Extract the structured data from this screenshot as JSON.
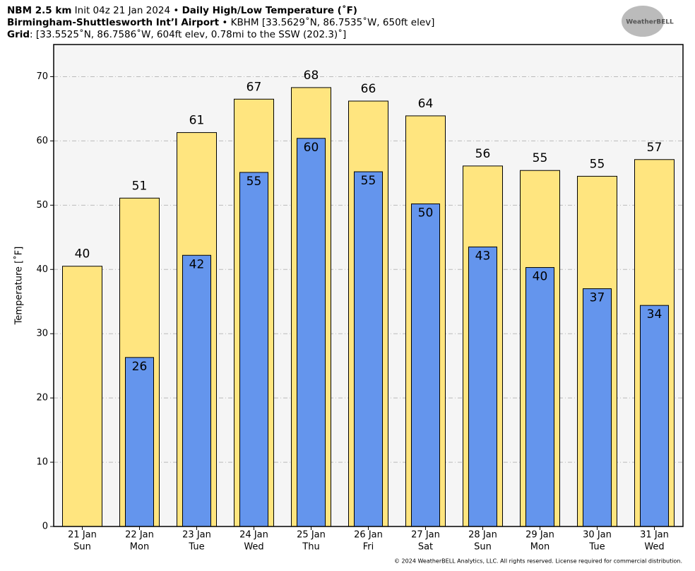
{
  "chart_data": {
    "type": "bar",
    "title_parts": [
      [
        "NBM 2.5 km",
        " Init 04z 21 Jan 2024 • ",
        "Daily High/Low Temperature (˚F)"
      ],
      [
        "Birmingham-Shuttlesworth Int’l Airport",
        " • KBHM [33.5629˚N, 86.7535˚W, 650ft elev]"
      ],
      [
        "Grid",
        ": [33.5525˚N, 86.7586˚W, 604ft elev, 0.78mi to the SSW (202.3)˚]"
      ]
    ],
    "ylabel": "Temperature [˚F]",
    "logo": "WeatherBELL",
    "footnote": "© 2024 WeatherBELL Analytics, LLC. All rights reserved. License required for commercial distribution.",
    "categories": [
      [
        "21 Jan",
        "Sun"
      ],
      [
        "22 Jan",
        "Mon"
      ],
      [
        "23 Jan",
        "Tue"
      ],
      [
        "24 Jan",
        "Wed"
      ],
      [
        "25 Jan",
        "Thu"
      ],
      [
        "26 Jan",
        "Fri"
      ],
      [
        "27 Jan",
        "Sat"
      ],
      [
        "28 Jan",
        "Sun"
      ],
      [
        "29 Jan",
        "Mon"
      ],
      [
        "30 Jan",
        "Tue"
      ],
      [
        "31 Jan",
        "Wed"
      ]
    ],
    "series": [
      {
        "color": "#ffe57f",
        "values": [
          40.5,
          51.1,
          61.3,
          66.5,
          68.3,
          66.2,
          63.9,
          56.1,
          55.4,
          54.5,
          57.1
        ],
        "value_labels": [
          "40",
          "51",
          "61",
          "67",
          "68",
          "66",
          "64",
          "56",
          "55",
          "55",
          "57"
        ]
      },
      {
        "color": "#6495ed",
        "values": [
          null,
          26.3,
          42.2,
          55.1,
          60.4,
          55.2,
          50.2,
          43.5,
          40.3,
          37.0,
          34.4
        ],
        "value_labels": [
          null,
          "26",
          "42",
          "55",
          "60",
          "55",
          "50",
          "43",
          "40",
          "37",
          "34"
        ]
      }
    ],
    "ylim": [
      0,
      75
    ],
    "yticks": [
      0,
      10,
      20,
      30,
      40,
      50,
      60,
      70
    ],
    "grid": true
  }
}
